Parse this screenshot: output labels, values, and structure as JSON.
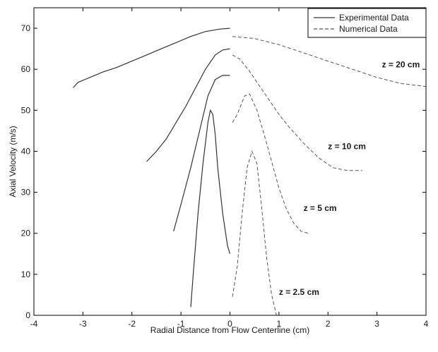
{
  "chart_data": {
    "type": "line",
    "xlabel": "Radial Distance from Flow Centerline (cm)",
    "ylabel": "Axial Velocity (m/s)",
    "xlim": [
      -4,
      4
    ],
    "ylim": [
      0,
      75
    ],
    "xticks": [
      -4,
      -3,
      -2,
      -1,
      0,
      1,
      2,
      3,
      4
    ],
    "yticks": [
      0,
      10,
      20,
      30,
      40,
      50,
      60,
      70
    ],
    "grid": false,
    "legend_position": "top-right",
    "legend": [
      {
        "label": "Experimental Data",
        "style": "solid"
      },
      {
        "label": "Numerical Data",
        "style": "dashed"
      }
    ],
    "annotations": [
      {
        "text": "z = 20 cm",
        "x": 3.1,
        "y": 60.5
      },
      {
        "text": "z = 10 cm",
        "x": 2.0,
        "y": 40.5
      },
      {
        "text": "z = 5 cm",
        "x": 1.5,
        "y": 25.5
      },
      {
        "text": "z = 2.5 cm",
        "x": 1.0,
        "y": 5.0
      }
    ],
    "series": [
      {
        "group": "z = 20 cm",
        "style": "solid",
        "x": [
          -3.2,
          -3.1,
          -2.9,
          -2.6,
          -2.3,
          -2.0,
          -1.7,
          -1.4,
          -1.1,
          -0.8,
          -0.5,
          -0.2,
          0.0
        ],
        "y": [
          55.5,
          56.8,
          57.8,
          59.3,
          60.5,
          62.0,
          63.5,
          65.0,
          66.5,
          68.0,
          69.2,
          69.8,
          70.0
        ]
      },
      {
        "group": "z = 20 cm",
        "style": "dashed",
        "x": [
          0.05,
          0.5,
          1.0,
          1.5,
          2.0,
          2.5,
          3.0,
          3.5,
          4.0
        ],
        "y": [
          68.0,
          67.5,
          66.0,
          64.0,
          62.0,
          60.0,
          58.0,
          56.5,
          55.8
        ]
      },
      {
        "group": "z = 10 cm",
        "style": "solid",
        "x": [
          -1.7,
          -1.5,
          -1.3,
          -1.1,
          -0.9,
          -0.7,
          -0.5,
          -0.3,
          -0.15,
          0.0
        ],
        "y": [
          37.5,
          40.0,
          43.0,
          47.0,
          51.0,
          55.5,
          60.0,
          63.5,
          64.7,
          65.0
        ]
      },
      {
        "group": "z = 10 cm",
        "style": "dashed",
        "x": [
          0.05,
          0.2,
          0.4,
          0.6,
          0.8,
          1.0,
          1.2,
          1.5,
          1.8,
          2.1,
          2.4,
          2.7
        ],
        "y": [
          63.5,
          62.5,
          59.5,
          56.0,
          52.5,
          49.0,
          46.0,
          42.0,
          38.5,
          36.0,
          35.3,
          35.3
        ]
      },
      {
        "group": "z = 5 cm",
        "style": "solid",
        "x": [
          -1.15,
          -1.0,
          -0.8,
          -0.6,
          -0.45,
          -0.3,
          -0.15,
          0.0
        ],
        "y": [
          20.5,
          27.0,
          36.0,
          46.0,
          53.5,
          57.5,
          58.5,
          58.5
        ]
      },
      {
        "group": "z = 5 cm",
        "style": "dashed",
        "x": [
          0.05,
          0.15,
          0.3,
          0.4,
          0.55,
          0.7,
          0.85,
          1.0,
          1.15,
          1.3,
          1.45,
          1.6
        ],
        "y": [
          47.0,
          49.0,
          53.5,
          54.0,
          50.0,
          44.0,
          37.5,
          31.0,
          26.0,
          22.5,
          20.5,
          20.0
        ]
      },
      {
        "group": "z = 2.5 cm",
        "style": "solid",
        "x": [
          -0.8,
          -0.75,
          -0.65,
          -0.55,
          -0.45,
          -0.4,
          -0.35,
          -0.3,
          -0.25,
          -0.15,
          -0.05,
          0.0
        ],
        "y": [
          2.0,
          10.0,
          25.0,
          37.0,
          47.0,
          50.0,
          49.0,
          44.0,
          36.0,
          25.0,
          17.0,
          15.0
        ]
      },
      {
        "group": "z = 2.5 cm",
        "style": "dashed",
        "x": [
          0.05,
          0.15,
          0.25,
          0.35,
          0.45,
          0.55,
          0.65,
          0.75,
          0.85,
          0.95
        ],
        "y": [
          4.5,
          12.0,
          25.0,
          36.0,
          40.0,
          37.0,
          26.0,
          14.0,
          5.0,
          0.0
        ]
      }
    ]
  }
}
